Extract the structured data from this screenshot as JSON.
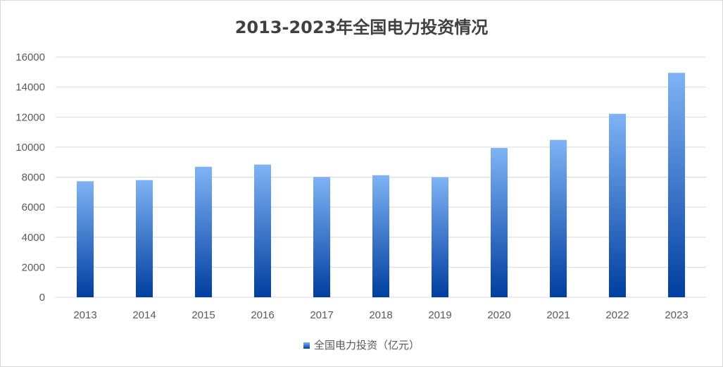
{
  "chart_data": {
    "type": "bar",
    "title": "2013-2023年全国电力投资情况",
    "categories": [
      "2013",
      "2014",
      "2015",
      "2016",
      "2017",
      "2018",
      "2019",
      "2020",
      "2021",
      "2022",
      "2023"
    ],
    "series": [
      {
        "name": "全国电力投资（亿元）",
        "values": [
          7728,
          7805,
          8694,
          8840,
          8014,
          8127,
          7995,
          9944,
          10481,
          12220,
          14950
        ]
      }
    ],
    "ylim": [
      0,
      16000
    ],
    "yticks": [
      0,
      2000,
      4000,
      6000,
      8000,
      10000,
      12000,
      14000,
      16000
    ],
    "grid": true,
    "legend_position": "bottom",
    "colors": {
      "bar_top": "#7fb3f5",
      "bar_bottom": "#003ea0",
      "grid": "#d9d9d9"
    }
  }
}
